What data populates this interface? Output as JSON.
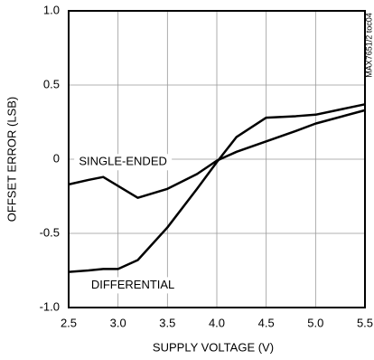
{
  "chart_data": {
    "type": "line",
    "x_label": "SUPPLY VOLTAGE (V)",
    "y_label": "OFFSET ERROR (LSB)",
    "side_note": "MAX7651/2 toc04",
    "x": [
      2.5,
      2.7,
      2.85,
      3.0,
      3.2,
      3.5,
      3.8,
      4.0,
      4.2,
      4.5,
      4.8,
      5.0,
      5.5
    ],
    "series": [
      {
        "name": "SINGLE-ENDED",
        "color": "#000000",
        "values": [
          -0.17,
          -0.14,
          -0.12,
          -0.18,
          -0.26,
          -0.2,
          -0.1,
          -0.01,
          0.05,
          0.12,
          0.19,
          0.24,
          0.33
        ]
      },
      {
        "name": "DIFFERENTIAL",
        "color": "#000000",
        "values": [
          -0.76,
          -0.75,
          -0.74,
          -0.74,
          -0.68,
          -0.46,
          -0.2,
          -0.02,
          0.15,
          0.28,
          0.29,
          0.3,
          0.37
        ]
      }
    ],
    "xlim": [
      2.5,
      5.5
    ],
    "xticks": [
      2.5,
      {
        "value": 3.0,
        "label": "3.0"
      },
      3.5,
      {
        "value": 4.0,
        "label": "4.0"
      },
      4.5,
      {
        "value": 5.0,
        "label": "5.0"
      },
      5.5
    ],
    "ylim": [
      -1.0,
      1.0
    ],
    "yticks": [
      {
        "value": -1.0,
        "label": "-1.0"
      },
      -0.5,
      0,
      0.5,
      {
        "value": 1.0,
        "label": "1.0"
      }
    ],
    "grid": true
  }
}
